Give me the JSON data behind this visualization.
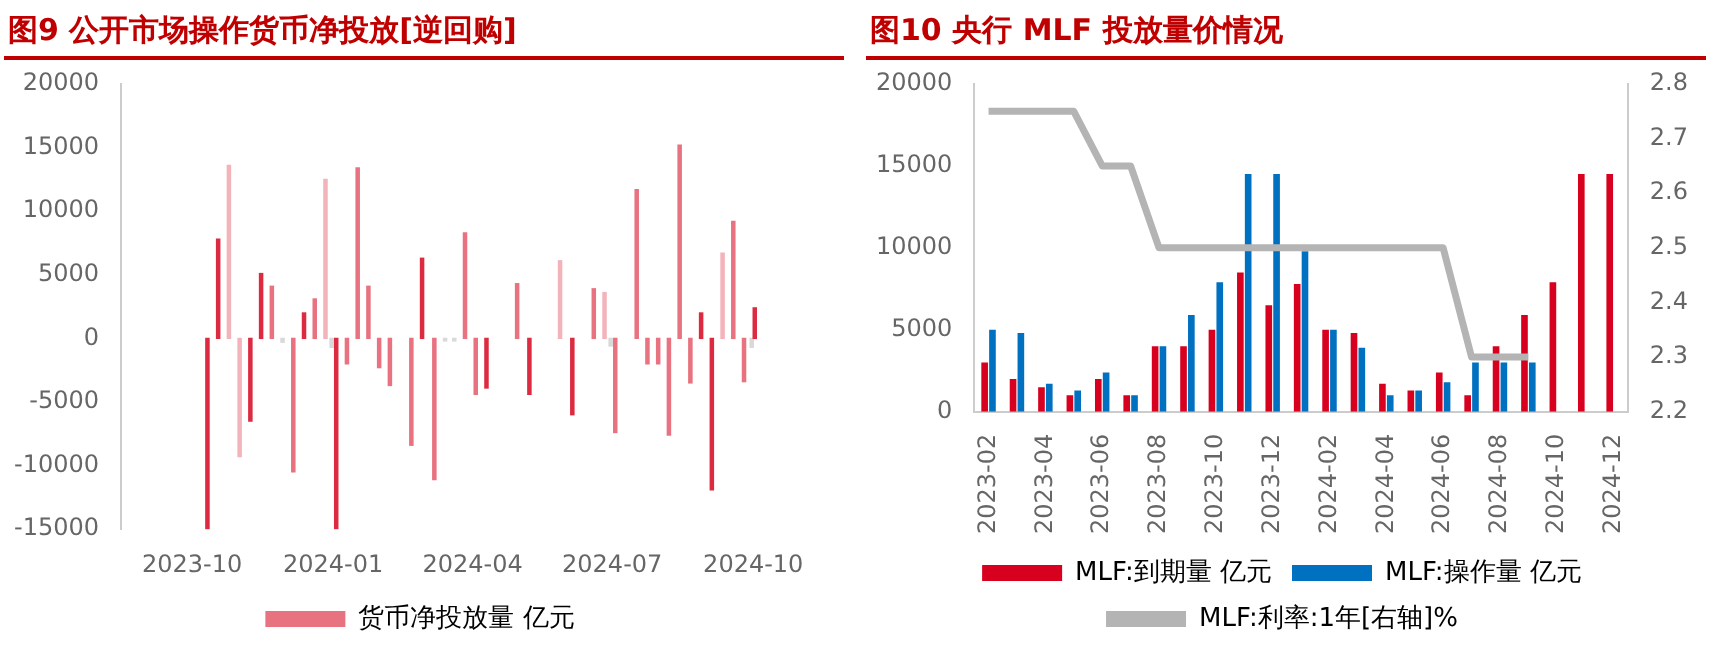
{
  "chart_data": [
    {
      "type": "bar",
      "title": "图9  公开市场操作货币净投放[逆回购]",
      "legend": "bottom",
      "grid": false,
      "x": [
        "2023-10-11",
        "2023-10-18",
        "2023-10-25",
        "2023-11-01",
        "2023-11-08",
        "2023-11-15",
        "2023-11-22",
        "2023-11-29",
        "2023-12-06",
        "2023-12-13",
        "2023-12-20",
        "2023-12-27",
        "2023-12-31",
        "2024-01-03",
        "2024-01-10",
        "2024-01-17",
        "2024-01-24",
        "2024-01-31",
        "2024-02-07",
        "2024-02-21",
        "2024-02-28",
        "2024-03-07",
        "2024-03-14",
        "2024-03-20",
        "2024-03-27",
        "2024-04-03",
        "2024-04-10",
        "2024-04-30",
        "2024-05-08",
        "2024-05-28",
        "2024-06-05",
        "2024-06-19",
        "2024-06-26",
        "2024-06-30",
        "2024-07-03",
        "2024-07-17",
        "2024-07-24",
        "2024-07-31",
        "2024-08-07",
        "2024-08-14",
        "2024-08-21",
        "2024-08-28",
        "2024-09-04",
        "2024-09-11",
        "2024-09-18",
        "2024-09-25",
        "2024-09-30",
        "2024-10-02"
      ],
      "xlim": [
        "2023-10-01",
        "2024-10-06"
      ],
      "xticks": [
        "2023-10",
        "2024-01",
        "2024-04",
        "2024-07",
        "2024-10"
      ],
      "ylim": [
        -15000,
        20000
      ],
      "yticks": [
        -15000,
        -10000,
        -5000,
        0,
        5000,
        10000,
        15000,
        20000
      ],
      "series": [
        {
          "name": "货币净投放量 亿元",
          "color": "#e8727f",
          "values": [
            -15000,
            7800,
            13600,
            -9300,
            -6500,
            5100,
            4100,
            -300,
            -10500,
            2000,
            3100,
            12500,
            -700,
            -15000,
            -2000,
            13400,
            4100,
            -2300,
            -3700,
            -8400,
            6300,
            -11100,
            -200,
            -200,
            8300,
            -4400,
            -3900,
            4300,
            -4400,
            6100,
            -6000,
            3900,
            3600,
            -600,
            -7400,
            11700,
            -2000,
            -2000,
            -7600,
            15200,
            -3500,
            2000,
            -11900,
            6700,
            9200,
            -3400,
            -700,
            2400
          ],
          "colors": [
            "#dc2a40",
            "#dc2a40",
            "#f3b3bb",
            "#f3b3bb",
            "#dc2a40",
            "#dc2a40",
            "#e8727f",
            "#d9d9d9",
            "#e8727f",
            "#dc2a40",
            "#e8727f",
            "#f3b3bb",
            "#d9d9d9",
            "#dc2a40",
            "#e8727f",
            "#e8727f",
            "#e8727f",
            "#e8727f",
            "#e8727f",
            "#e8727f",
            "#dc2a40",
            "#e8727f",
            "#d9d9d9",
            "#d9d9d9",
            "#e8727f",
            "#e8727f",
            "#dc2a40",
            "#e8727f",
            "#dc2a40",
            "#f3b3bb",
            "#dc2a40",
            "#e8727f",
            "#f3b3bb",
            "#d9d9d9",
            "#e8727f",
            "#e8727f",
            "#e8727f",
            "#e8727f",
            "#e8727f",
            "#e8727f",
            "#e8727f",
            "#dc2a40",
            "#dc2a40",
            "#f3b3bb",
            "#e8727f",
            "#e8727f",
            "#d9d9d9",
            "#dc2a40"
          ]
        }
      ]
    },
    {
      "type": "bar",
      "title": "图10  央行 MLF 投放量价情况",
      "legend": "bottom",
      "grid": false,
      "categories": [
        "2023-02",
        null,
        "2023-04",
        null,
        "2023-06",
        null,
        "2023-08",
        null,
        "2023-10",
        null,
        "2023-12",
        null,
        "2024-02",
        null,
        "2024-04",
        null,
        "2024-06",
        null,
        "2024-08",
        null,
        "2024-10",
        null,
        "2024-12"
      ],
      "ylim": [
        0,
        20000
      ],
      "yticks": [
        0,
        5000,
        10000,
        15000,
        20000
      ],
      "y2lim": [
        2.2,
        2.8
      ],
      "y2ticks": [
        2.2,
        2.3,
        2.4,
        2.5,
        2.6,
        2.7,
        2.8
      ],
      "series": [
        {
          "name": "MLF:到期量 亿元",
          "type": "bar",
          "color": "#d7001e",
          "values": [
            3000,
            2000,
            1500,
            1000,
            2000,
            1000,
            4000,
            4000,
            5000,
            8500,
            6500,
            7800,
            5000,
            4800,
            1700,
            1300,
            2400,
            1000,
            4000,
            5900,
            7900,
            14500,
            14500
          ]
        },
        {
          "name": "MLF:操作量 亿元",
          "type": "bar",
          "color": "#0070c0",
          "values": [
            5000,
            4800,
            1700,
            1300,
            2400,
            1000,
            4000,
            5900,
            7900,
            14500,
            14500,
            9800,
            5000,
            3900,
            1000,
            1300,
            1800,
            3000,
            3000,
            3000,
            null,
            null,
            null
          ]
        },
        {
          "name": "MLF:利率:1年[右轴]%",
          "type": "line",
          "axis": "y2",
          "marker": "none",
          "line_style": "solid",
          "color": "#b4b4b4",
          "values": [
            2.75,
            2.75,
            2.75,
            2.75,
            2.65,
            2.65,
            2.5,
            2.5,
            2.5,
            2.5,
            2.5,
            2.5,
            2.5,
            2.5,
            2.5,
            2.5,
            2.5,
            2.3,
            2.3,
            2.3,
            null,
            null,
            null
          ]
        }
      ]
    }
  ]
}
